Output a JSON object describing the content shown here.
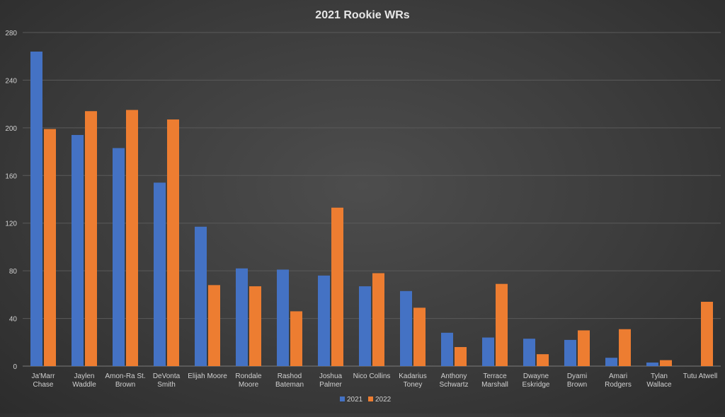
{
  "chart_data": {
    "type": "bar",
    "title": "2021 Rookie WRs",
    "xlabel": "",
    "ylabel": "",
    "ylim": [
      0,
      280
    ],
    "yticks": [
      0,
      40,
      80,
      120,
      160,
      200,
      240,
      280
    ],
    "grid": true,
    "legend_position": "bottom",
    "categories": [
      [
        "Ja'Marr",
        "Chase"
      ],
      [
        "Jaylen",
        "Waddle"
      ],
      [
        "Amon-Ra St.",
        "Brown"
      ],
      [
        "DeVonta",
        "Smith"
      ],
      [
        "Elijah Moore"
      ],
      [
        "Rondale",
        "Moore"
      ],
      [
        "Rashod",
        "Bateman"
      ],
      [
        "Joshua",
        "Palmer"
      ],
      [
        "Nico Collins"
      ],
      [
        "Kadarius",
        "Toney"
      ],
      [
        "Anthony",
        "Schwartz"
      ],
      [
        "Terrace",
        "Marshall"
      ],
      [
        "Dwayne",
        "Eskridge"
      ],
      [
        "Dyami",
        "Brown"
      ],
      [
        "Amari",
        "Rodgers"
      ],
      [
        "Tylan",
        "Wallace"
      ],
      [
        "Tutu Atwell"
      ]
    ],
    "series": [
      {
        "name": "2021",
        "color": "#4472C4",
        "values": [
          264,
          194,
          183,
          154,
          117,
          82,
          81,
          76,
          67,
          63,
          28,
          24,
          23,
          22,
          7,
          3,
          0
        ]
      },
      {
        "name": "2022",
        "color": "#ED7D31",
        "values": [
          199,
          214,
          215,
          207,
          68,
          67,
          46,
          133,
          78,
          49,
          16,
          69,
          10,
          30,
          31,
          5,
          54
        ]
      }
    ]
  }
}
